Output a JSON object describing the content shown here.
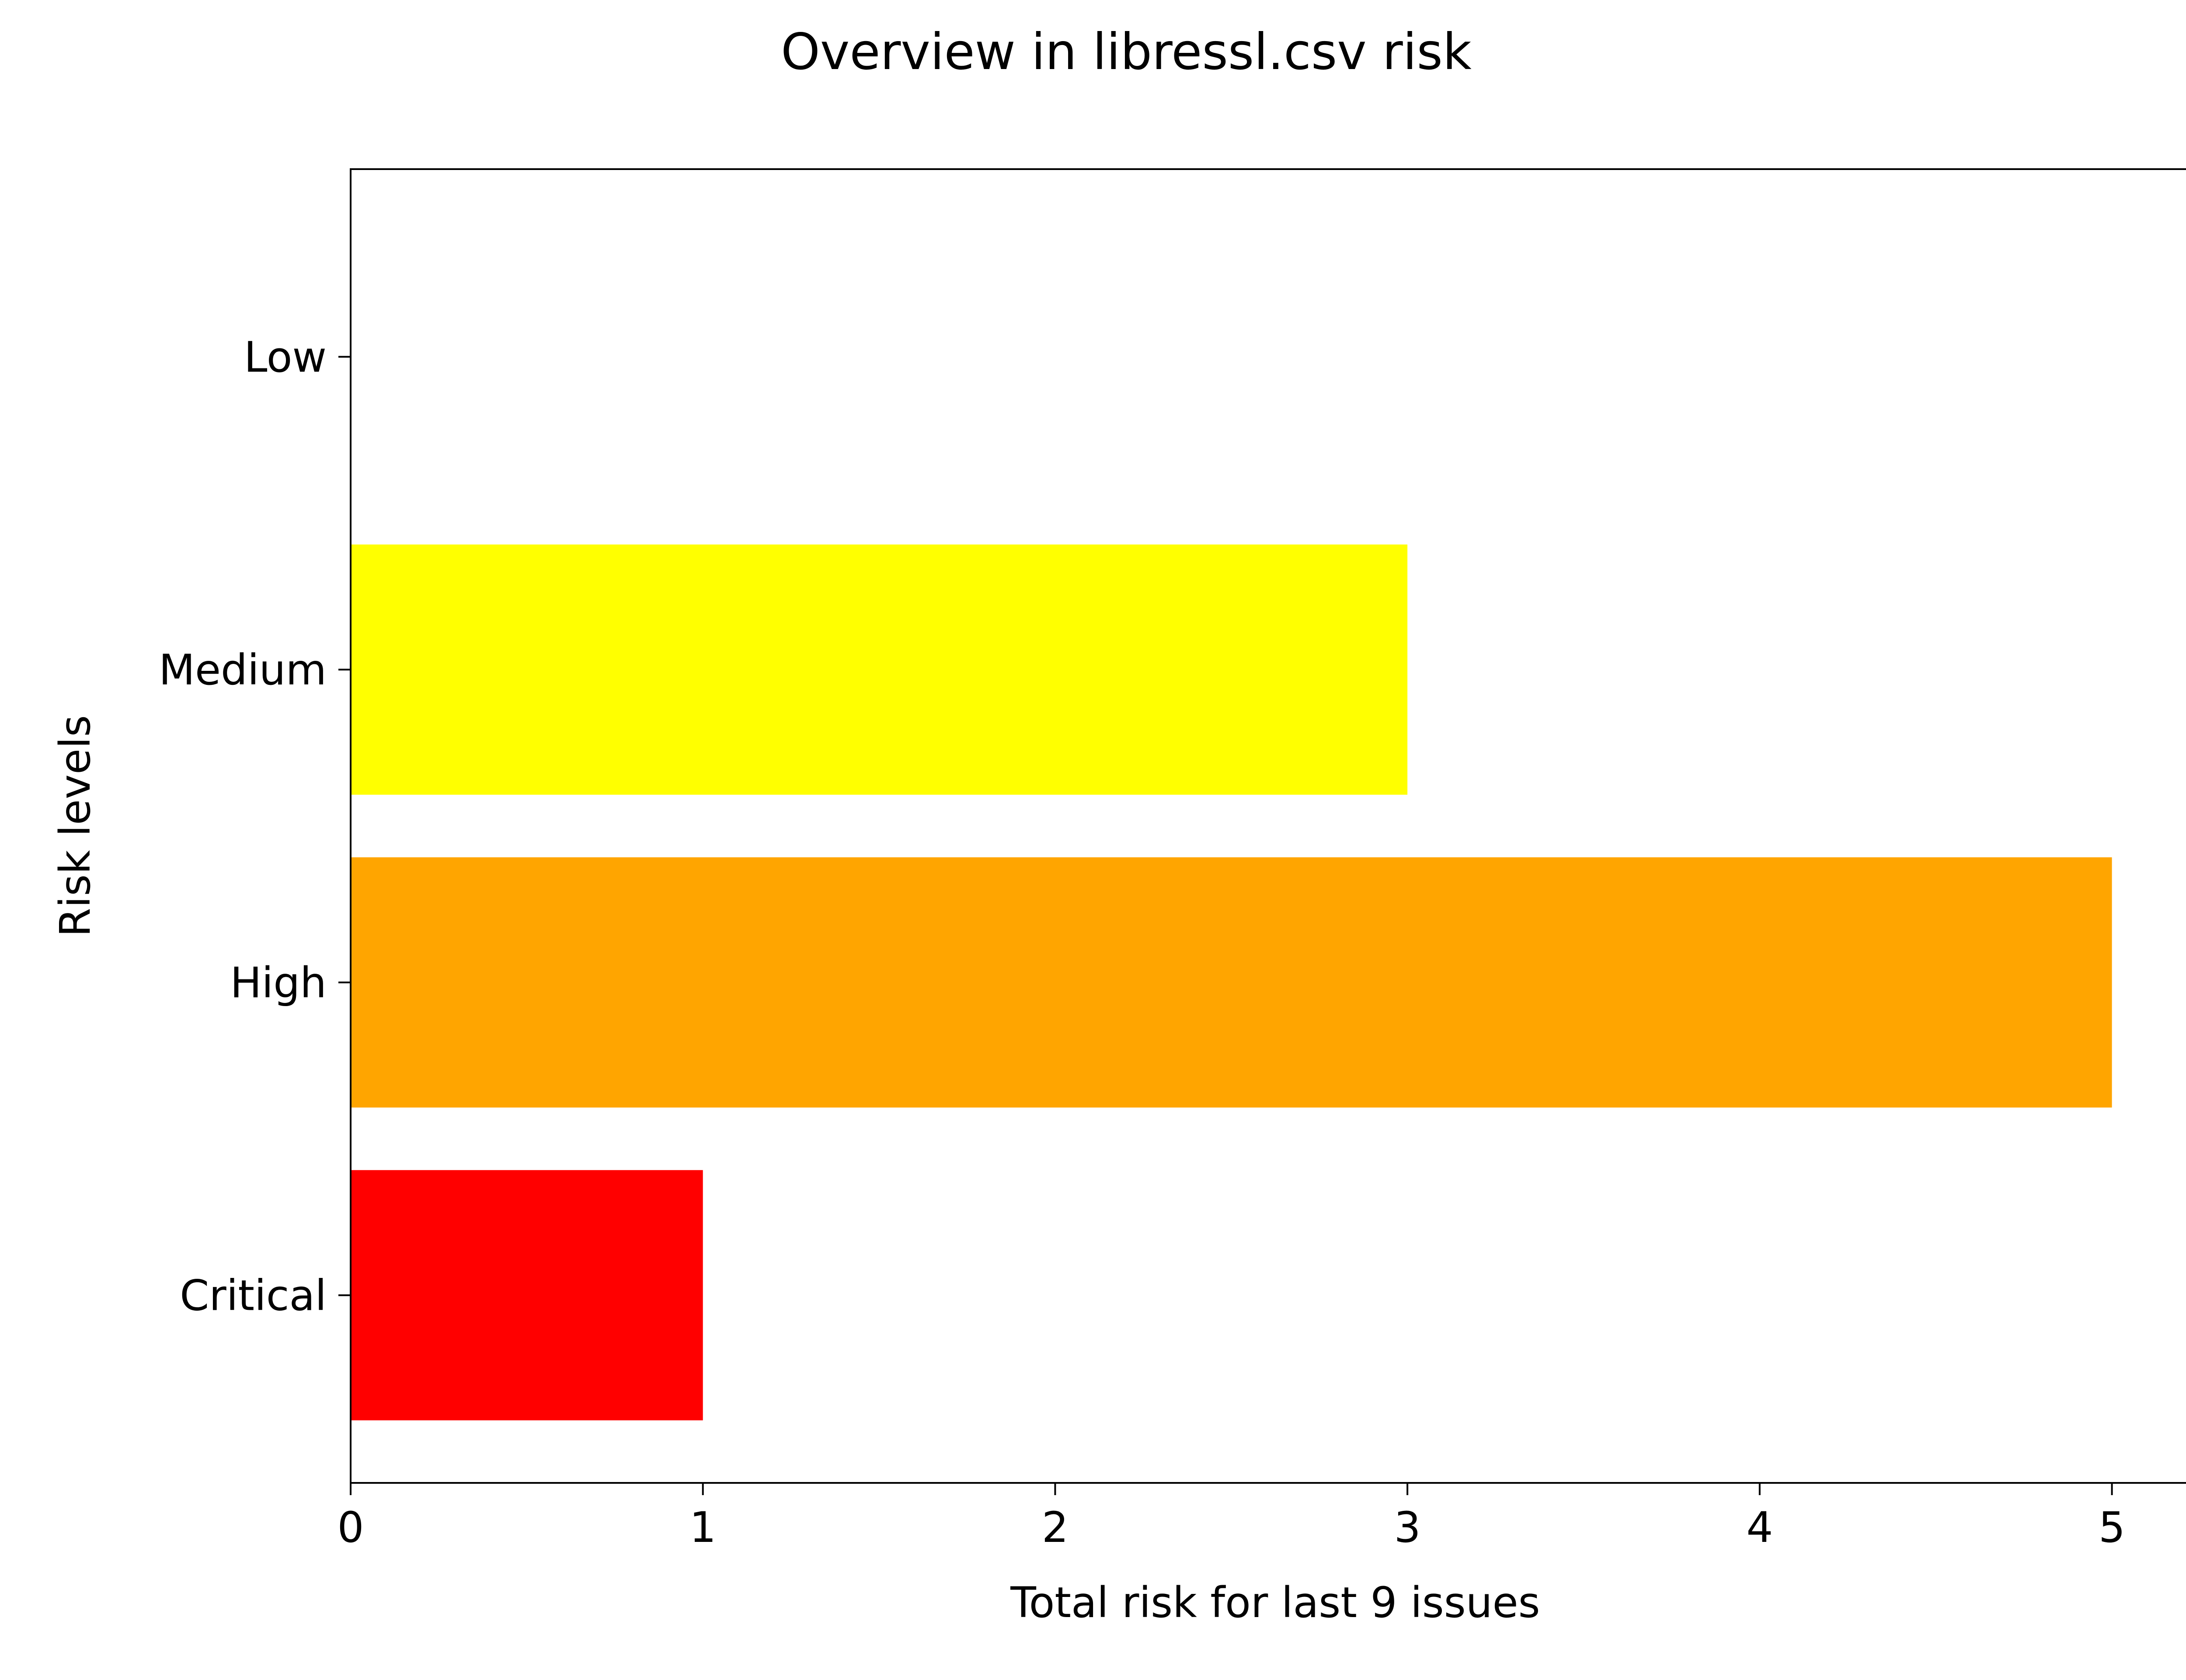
{
  "chart_data": {
    "type": "bar",
    "orientation": "horizontal",
    "title": "Overview in libressl.csv risk",
    "xlabel": "Total risk for last 9 issues",
    "ylabel": "Risk levels",
    "categories": [
      "Critical",
      "High",
      "Medium",
      "Low"
    ],
    "values": [
      1,
      5,
      3,
      0
    ],
    "colors": [
      "#ff0000",
      "#ffa500",
      "#ffff00",
      "#ffffff"
    ],
    "xlim": [
      0,
      5.25
    ],
    "xticks": [
      0,
      1,
      2,
      3,
      4,
      5
    ],
    "grid": false,
    "legend": "none"
  }
}
